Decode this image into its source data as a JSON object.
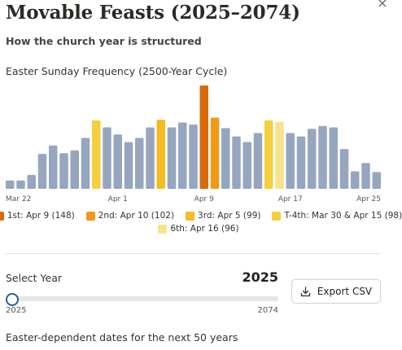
{
  "page": {
    "title": "Movable Feasts (2025–2074)",
    "subtitle": "How the church year is structured",
    "close_glyph": "×"
  },
  "chart_data": {
    "type": "bar",
    "title": "Easter Sunday Frequency (2500-Year Cycle)",
    "xlabel": "",
    "ylabel": "",
    "categories": [
      "Mar 22",
      "Mar 23",
      "Mar 24",
      "Mar 25",
      "Mar 26",
      "Mar 27",
      "Mar 28",
      "Mar 29",
      "Mar 30",
      "Mar 31",
      "Apr 1",
      "Apr 2",
      "Apr 3",
      "Apr 4",
      "Apr 5",
      "Apr 6",
      "Apr 7",
      "Apr 8",
      "Apr 9",
      "Apr 10",
      "Apr 11",
      "Apr 12",
      "Apr 13",
      "Apr 14",
      "Apr 15",
      "Apr 16",
      "Apr 17",
      "Apr 18",
      "Apr 19",
      "Apr 20",
      "Apr 21",
      "Apr 22",
      "Apr 23",
      "Apr 24",
      "Apr 25"
    ],
    "values": [
      12,
      12,
      20,
      50,
      62,
      51,
      55,
      73,
      98,
      88,
      78,
      67,
      73,
      88,
      99,
      88,
      95,
      92,
      148,
      102,
      87,
      75,
      67,
      80,
      98,
      96,
      80,
      75,
      86,
      90,
      88,
      57,
      25,
      37,
      24
    ],
    "tick_labels": [
      "Mar 22",
      "Apr 1",
      "Apr 9",
      "Apr 17",
      "Apr 25"
    ],
    "ylim": [
      0,
      155
    ],
    "grid": false,
    "colors": {
      "default": "#97a6bf",
      "rank1": "#d96a0c",
      "rank2": "#ef9a16",
      "rank3": "#f5bc23",
      "rank4": "#f6cf3e",
      "rank6": "#f7e38c"
    },
    "highlights": {
      "Apr 9": "rank1",
      "Apr 10": "rank2",
      "Apr 5": "rank3",
      "Mar 30": "rank4",
      "Apr 15": "rank4",
      "Apr 16": "rank6"
    },
    "legend": [
      [
        {
          "label": "1st: Apr 9 (148)",
          "color": "#d96a0c"
        },
        {
          "label": "2nd: Apr 10 (102)",
          "color": "#ef9a16"
        },
        {
          "label": "3rd: Apr 5 (99)",
          "color": "#f5bc23"
        },
        {
          "label": "T-4th: Mar 30 & Apr 15 (98)",
          "color": "#f6cf3e"
        }
      ],
      [
        {
          "label": "6th: Apr 16 (96)",
          "color": "#f7e38c"
        }
      ]
    ],
    "legend_position": "bottom"
  },
  "controls": {
    "select_label": "Select Year",
    "year_value": "2025",
    "range_min": "2025",
    "range_max": "2074",
    "slider_fraction": 0,
    "export_label": "Export CSV",
    "export_icon": "download-icon"
  },
  "footer": {
    "text": "Easter-dependent dates for the next 50 years"
  }
}
